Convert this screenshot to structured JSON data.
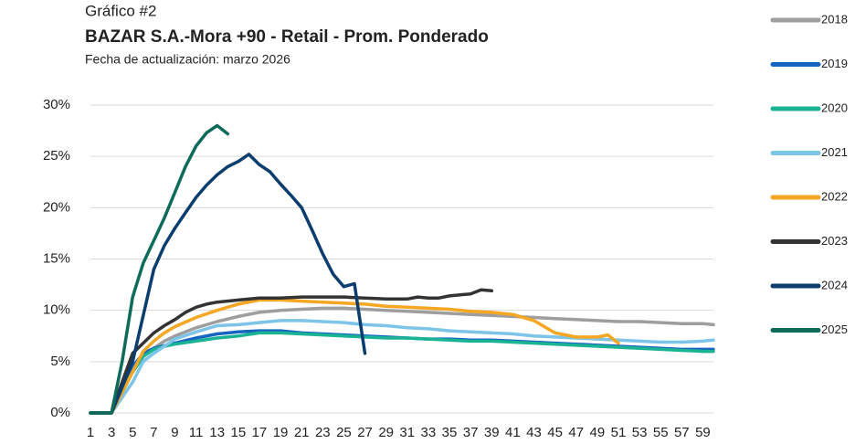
{
  "chart_data": {
    "type": "line",
    "pretitle": "Gráfico #2",
    "title": "BAZAR S.A.-Mora +90 - Retail - Prom. Ponderado",
    "subtitle": "Fecha de actualización: marzo 2026",
    "xlim": [
      1,
      60
    ],
    "xticks": [
      1,
      3,
      5,
      7,
      9,
      11,
      13,
      15,
      17,
      19,
      21,
      23,
      25,
      27,
      29,
      31,
      33,
      35,
      37,
      39,
      41,
      43,
      45,
      47,
      49,
      51,
      53,
      55,
      57,
      59
    ],
    "ylim": [
      0,
      30
    ],
    "yticks": [
      {
        "value": 0,
        "label": "0%"
      },
      {
        "value": 5,
        "label": "5%"
      },
      {
        "value": 10,
        "label": "10%"
      },
      {
        "value": 15,
        "label": "15%"
      },
      {
        "value": 20,
        "label": "20%"
      },
      {
        "value": 25,
        "label": "25%"
      },
      {
        "value": 30,
        "label": "30%"
      }
    ],
    "grid": true,
    "legend": "right",
    "series": [
      {
        "name": "2018",
        "color": "#9e9e9e",
        "x": [
          1,
          2,
          3,
          4,
          5,
          6,
          7,
          8,
          9,
          11,
          13,
          15,
          17,
          19,
          21,
          23,
          25,
          27,
          29,
          31,
          33,
          35,
          37,
          39,
          41,
          43,
          45,
          47,
          49,
          51,
          53,
          55,
          57,
          59,
          60
        ],
        "values": [
          0,
          0,
          0,
          2,
          4,
          5.5,
          6.3,
          7,
          7.5,
          8.3,
          8.9,
          9.4,
          9.8,
          10,
          10.1,
          10.2,
          10.2,
          10.1,
          10,
          9.9,
          9.8,
          9.7,
          9.6,
          9.5,
          9.4,
          9.3,
          9.2,
          9.1,
          9,
          8.9,
          8.9,
          8.8,
          8.7,
          8.7,
          8.6
        ]
      },
      {
        "name": "2019",
        "color": "#1565c0",
        "x": [
          1,
          2,
          3,
          4,
          5,
          6,
          7,
          9,
          11,
          13,
          15,
          17,
          19,
          21,
          23,
          25,
          27,
          29,
          31,
          33,
          35,
          37,
          39,
          41,
          43,
          45,
          47,
          49,
          51,
          53,
          55,
          57,
          59,
          60
        ],
        "values": [
          0,
          0,
          0,
          2.5,
          4.5,
          5.8,
          6.3,
          6.8,
          7.3,
          7.7,
          7.9,
          8,
          8,
          7.8,
          7.7,
          7.6,
          7.5,
          7.4,
          7.3,
          7.2,
          7.2,
          7.1,
          7.1,
          7,
          6.9,
          6.8,
          6.7,
          6.6,
          6.5,
          6.4,
          6.3,
          6.2,
          6.2,
          6.2
        ]
      },
      {
        "name": "2020",
        "color": "#1ab394",
        "x": [
          1,
          2,
          3,
          4,
          5,
          6,
          7,
          8,
          9,
          11,
          13,
          15,
          17,
          19,
          21,
          23,
          25,
          27,
          29,
          31,
          33,
          35,
          37,
          39,
          41,
          43,
          45,
          47,
          49,
          51,
          53,
          55,
          57,
          59,
          60
        ],
        "values": [
          0,
          0,
          0,
          2,
          4,
          5.5,
          6.2,
          6.5,
          6.7,
          7,
          7.3,
          7.5,
          7.8,
          7.8,
          7.7,
          7.6,
          7.5,
          7.4,
          7.3,
          7.3,
          7.2,
          7.1,
          7,
          7,
          6.9,
          6.8,
          6.7,
          6.6,
          6.5,
          6.4,
          6.3,
          6.2,
          6.1,
          6,
          6
        ]
      },
      {
        "name": "2021",
        "color": "#7cc4e8",
        "x": [
          1,
          2,
          3,
          4,
          5,
          6,
          7,
          8,
          9,
          11,
          13,
          15,
          17,
          19,
          21,
          23,
          25,
          27,
          29,
          31,
          33,
          35,
          37,
          39,
          41,
          43,
          45,
          47,
          49,
          51,
          53,
          55,
          57,
          59,
          60
        ],
        "values": [
          0,
          0,
          0,
          1.5,
          3,
          5,
          5.8,
          6.5,
          7.2,
          7.9,
          8.5,
          8.6,
          8.8,
          9,
          9,
          8.9,
          8.8,
          8.6,
          8.5,
          8.3,
          8.2,
          8,
          7.9,
          7.8,
          7.7,
          7.5,
          7.4,
          7.3,
          7.2,
          7.1,
          7,
          6.9,
          6.9,
          7,
          7.1
        ]
      },
      {
        "name": "2022",
        "color": "#f5a623",
        "x": [
          1,
          2,
          3,
          4,
          5,
          6,
          7,
          8,
          9,
          11,
          13,
          15,
          17,
          19,
          21,
          23,
          25,
          27,
          29,
          31,
          33,
          35,
          37,
          39,
          41,
          43,
          45,
          47,
          49,
          50,
          51
        ],
        "values": [
          0,
          0,
          0,
          2,
          4,
          6,
          7,
          7.8,
          8.4,
          9.3,
          10,
          10.6,
          11,
          11,
          10.9,
          10.8,
          10.7,
          10.6,
          10.4,
          10.3,
          10.2,
          10.1,
          9.9,
          9.8,
          9.6,
          9,
          7.8,
          7.4,
          7.4,
          7.6,
          6.8
        ]
      },
      {
        "name": "2023",
        "color": "#333333",
        "x": [
          1,
          2,
          3,
          4,
          5,
          6,
          7,
          8,
          9,
          10,
          11,
          12,
          13,
          15,
          17,
          19,
          21,
          23,
          25,
          27,
          29,
          31,
          32,
          33,
          34,
          35,
          36,
          37,
          38,
          39
        ],
        "values": [
          0,
          0,
          0,
          3,
          5.8,
          6.8,
          7.8,
          8.5,
          9.1,
          9.8,
          10.3,
          10.6,
          10.8,
          11,
          11.2,
          11.2,
          11.3,
          11.3,
          11.3,
          11.2,
          11.1,
          11.1,
          11.3,
          11.2,
          11.2,
          11.4,
          11.5,
          11.6,
          12,
          11.9
        ]
      },
      {
        "name": "2024",
        "color": "#0b3d6e",
        "x": [
          1,
          2,
          3,
          4,
          5,
          6,
          7,
          8,
          9,
          10,
          11,
          12,
          13,
          14,
          15,
          16,
          17,
          18,
          19,
          20,
          21,
          22,
          23,
          24,
          25,
          26,
          27
        ],
        "values": [
          0,
          0,
          0,
          2.5,
          5,
          9.5,
          14,
          16.3,
          18,
          19.5,
          21,
          22.2,
          23.2,
          24,
          24.5,
          25.2,
          24.2,
          23.5,
          22.3,
          21.2,
          20,
          17.8,
          15.5,
          13.5,
          12.3,
          12.6,
          5.8
        ]
      },
      {
        "name": "2025",
        "color": "#0e6b5a",
        "x": [
          1,
          2,
          3,
          4,
          5,
          6,
          7,
          8,
          9,
          10,
          11,
          12,
          13,
          14
        ],
        "values": [
          0,
          0,
          0,
          5,
          11.3,
          14.6,
          16.8,
          19,
          21.5,
          24,
          26,
          27.3,
          28,
          27.2
        ]
      }
    ]
  }
}
